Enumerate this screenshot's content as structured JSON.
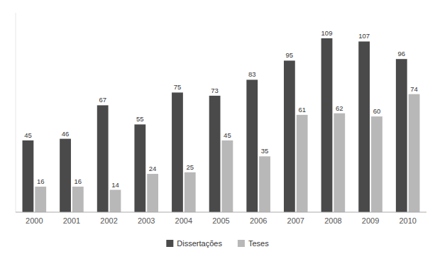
{
  "chart_data": {
    "type": "bar",
    "categories": [
      "2000",
      "2001",
      "2002",
      "2003",
      "2004",
      "2005",
      "2006",
      "2007",
      "2008",
      "2009",
      "2010"
    ],
    "series": [
      {
        "name": "Dissertações",
        "color": "#4a4a4a",
        "values": [
          45,
          46,
          67,
          55,
          75,
          73,
          83,
          95,
          109,
          107,
          96
        ]
      },
      {
        "name": "Teses",
        "color": "#b8b8b8",
        "values": [
          16,
          16,
          14,
          24,
          25,
          45,
          35,
          61,
          62,
          60,
          74
        ]
      }
    ],
    "ylim": [
      0,
      125
    ],
    "grid": false,
    "legend": "bottom",
    "data_labels": true,
    "tick_labels": "x"
  }
}
